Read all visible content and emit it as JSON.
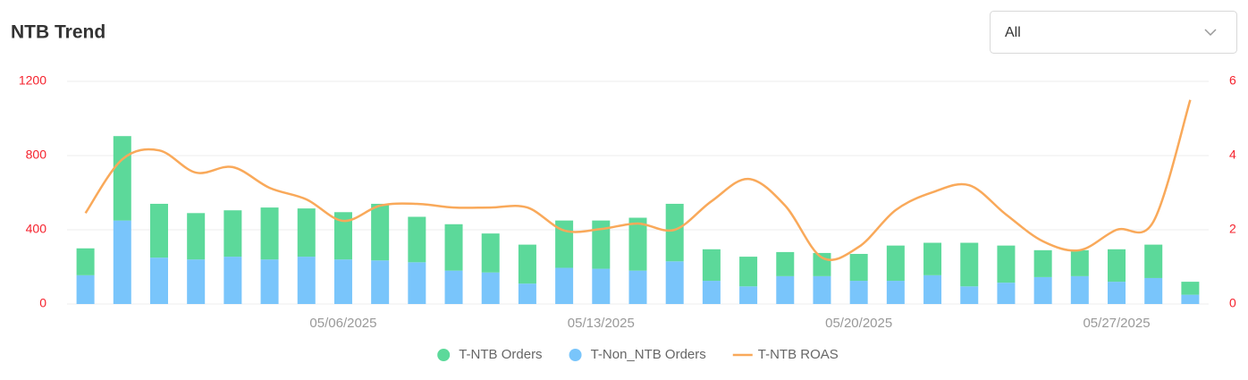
{
  "header": {
    "title": "NTB Trend"
  },
  "filter": {
    "selected": "All"
  },
  "chart_data": {
    "type": "bar-line",
    "categories": [
      null,
      null,
      null,
      null,
      null,
      null,
      null,
      "05/06/2025",
      null,
      null,
      null,
      null,
      null,
      null,
      "05/13/2025",
      null,
      null,
      null,
      null,
      null,
      null,
      "05/20/2025",
      null,
      null,
      null,
      null,
      null,
      null,
      "05/27/2025",
      null,
      null
    ],
    "series": [
      {
        "name": "T-NTB Orders",
        "type": "bar",
        "color": "#5cd99a",
        "values": [
          145,
          455,
          290,
          250,
          250,
          280,
          260,
          255,
          305,
          245,
          250,
          210,
          210,
          255,
          260,
          285,
          310,
          170,
          160,
          130,
          125,
          145,
          190,
          175,
          235,
          200,
          145,
          140,
          175,
          180,
          70
        ]
      },
      {
        "name": "T-Non_NTB Orders",
        "type": "bar",
        "color": "#79c5fb",
        "values": [
          155,
          450,
          250,
          240,
          255,
          240,
          255,
          240,
          235,
          225,
          180,
          170,
          110,
          195,
          190,
          180,
          230,
          125,
          95,
          150,
          150,
          125,
          125,
          155,
          95,
          115,
          145,
          150,
          120,
          140,
          50
        ]
      },
      {
        "name": "T-NTB ROAS",
        "type": "line",
        "axis": "y2",
        "color": "#f9a95a",
        "values": [
          2.45,
          3.9,
          4.14,
          3.54,
          3.69,
          3.13,
          2.82,
          2.24,
          2.65,
          2.7,
          2.6,
          2.6,
          2.6,
          1.98,
          2.02,
          2.17,
          2.0,
          2.77,
          3.37,
          2.65,
          1.25,
          1.54,
          2.53,
          3.01,
          3.2,
          2.41,
          1.69,
          1.45,
          2.0,
          2.22,
          5.5
        ]
      }
    ],
    "stacked": true,
    "ylim": [
      0,
      1200
    ],
    "yticks": [
      0,
      400,
      800,
      1200
    ],
    "y2lim": [
      0,
      6
    ],
    "y2ticks": [
      0,
      2,
      4,
      6
    ],
    "tick_color": "#f5222d",
    "grid": true,
    "legend": "bottom"
  }
}
